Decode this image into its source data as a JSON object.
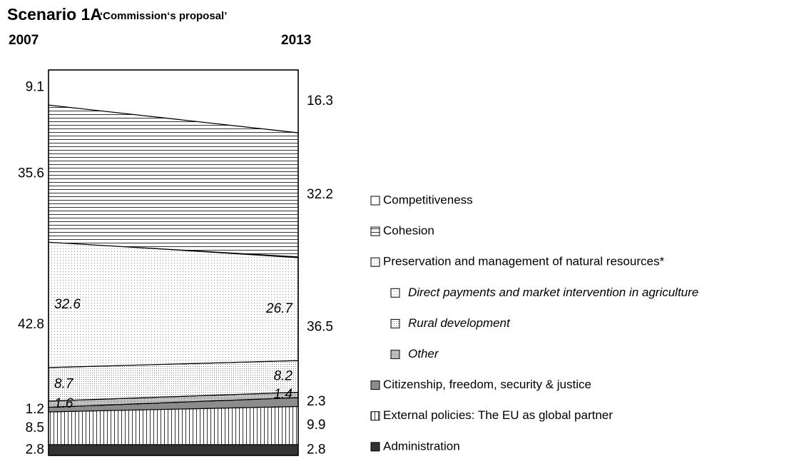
{
  "chart_data": {
    "type": "stacked_area",
    "title": "Scenario 1A",
    "subtitle": "‘Commission‘s proposal’",
    "categories": [
      "2007",
      "2013"
    ],
    "ylim": [
      0,
      100
    ],
    "series": [
      {
        "name": "Administration",
        "color": "#333333",
        "pattern": "solid",
        "values": [
          2.8,
          2.8
        ]
      },
      {
        "name": "External policies: The EU as global partner",
        "color": "#000000",
        "pattern": "vlines",
        "values": [
          8.5,
          9.9
        ]
      },
      {
        "name": "Citizenship, freedom, security & justice",
        "color": "#8c8c8c",
        "pattern": "solid",
        "values": [
          1.2,
          2.3
        ]
      },
      {
        "name": "Preservation and management of natural resources*",
        "color": "#000000",
        "pattern": "dots",
        "values": [
          42.8,
          36.5
        ],
        "subseries": [
          {
            "name": "Other",
            "color": "#000000",
            "pattern": "dots-dense",
            "values": [
              1.6,
              1.4
            ]
          },
          {
            "name": "Rural development",
            "color": "#000000",
            "pattern": "dots-medium",
            "values": [
              8.7,
              8.2
            ]
          },
          {
            "name": "Direct payments and market intervention in agriculture",
            "color": "#000000",
            "pattern": "dots",
            "values": [
              32.6,
              26.7
            ]
          }
        ]
      },
      {
        "name": "Cohesion",
        "color": "#000000",
        "pattern": "hlines",
        "values": [
          35.6,
          32.2
        ]
      },
      {
        "name": "Competitiveness",
        "color": "#ffffff",
        "pattern": "solid",
        "values": [
          9.1,
          16.3
        ]
      }
    ]
  }
}
